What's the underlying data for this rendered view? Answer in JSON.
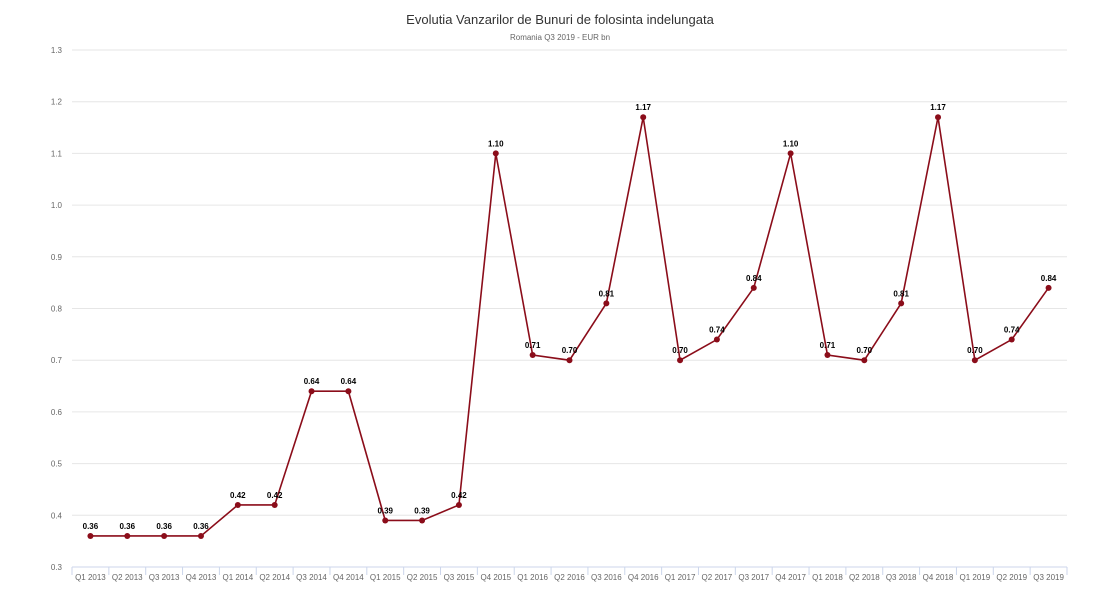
{
  "colors": {
    "series": "#8b0d1a",
    "grid": "#e6e6e6",
    "axis": "#ccd6eb"
  },
  "chart_data": {
    "type": "line",
    "title": "Evolutia Vanzarilor de Bunuri de folosinta indelungata",
    "subtitle": "Romania Q3 2019 - EUR bn",
    "categories": [
      "Q1 2013",
      "Q2 2013",
      "Q3 2013",
      "Q4 2013",
      "Q1 2014",
      "Q2 2014",
      "Q3 2014",
      "Q4 2014",
      "Q1 2015",
      "Q2 2015",
      "Q3 2015",
      "Q4 2015",
      "Q1 2016",
      "Q2 2016",
      "Q3 2016",
      "Q4 2016",
      "Q1 2017",
      "Q2 2017",
      "Q3 2017",
      "Q4 2017",
      "Q1 2018",
      "Q2 2018",
      "Q3 2018",
      "Q4 2018",
      "Q1 2019",
      "Q2 2019",
      "Q3 2019"
    ],
    "values": [
      0.36,
      0.36,
      0.36,
      0.36,
      0.42,
      0.42,
      0.64,
      0.64,
      0.39,
      0.39,
      0.42,
      1.1,
      0.71,
      0.7,
      0.81,
      1.17,
      0.7,
      0.74,
      0.84,
      1.1,
      0.71,
      0.7,
      0.81,
      1.17,
      0.7,
      0.74,
      0.84
    ],
    "data_labels": [
      "0.36",
      "0.36",
      "0.36",
      "0.36",
      "0.42",
      "0.42",
      "0.64",
      "0.64",
      "0.39",
      "0.39",
      "0.42",
      "1.10",
      "0.71",
      "0.70",
      "0.81",
      "1.17",
      "0.70",
      "0.74",
      "0.84",
      "1.10",
      "0.71",
      "0.70",
      "0.81",
      "1.17",
      "0.70",
      "0.74",
      "0.84"
    ],
    "y_ticks": [
      "0.3",
      "0.4",
      "0.5",
      "0.6",
      "0.7",
      "0.8",
      "0.9",
      "1.0",
      "1.1",
      "1.2",
      "1.3"
    ],
    "ylim": [
      0.3,
      1.3
    ],
    "xlabel": "",
    "ylabel": "",
    "grid": true,
    "legend": "none"
  }
}
